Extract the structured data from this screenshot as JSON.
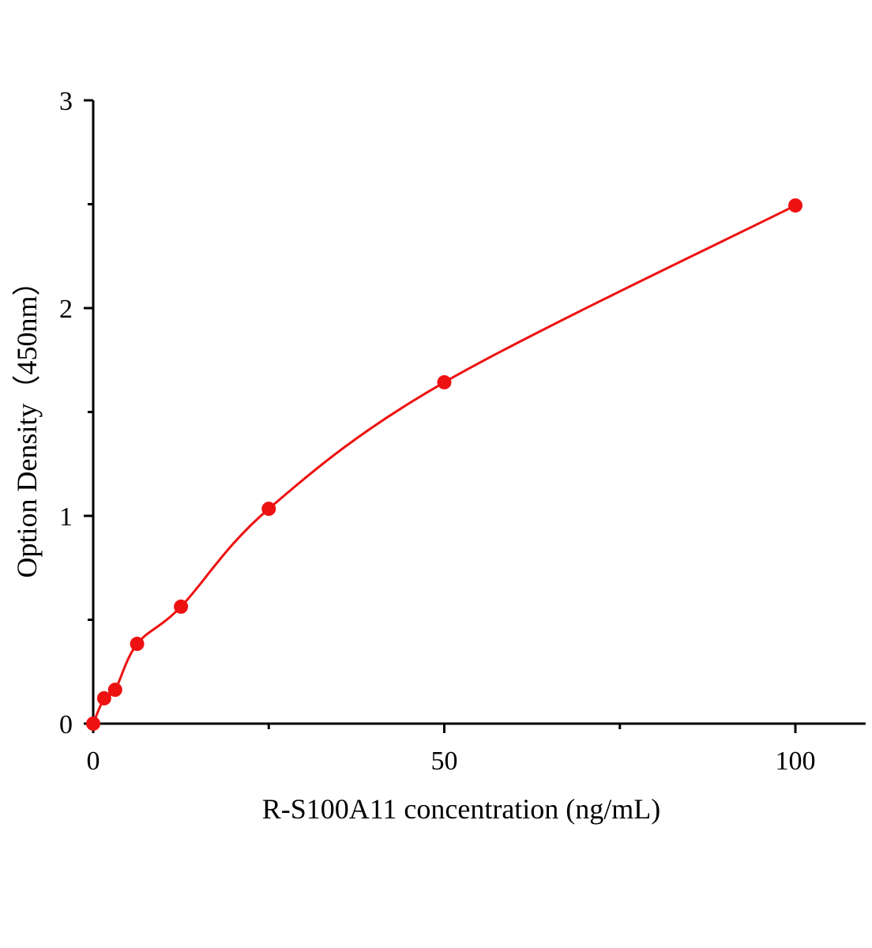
{
  "chart_data": {
    "type": "scatter",
    "title": "",
    "xlabel": "R-S100A11 concentration (ng/mL)",
    "ylabel": "Option Density（450nm）",
    "xlim": [
      0,
      110
    ],
    "ylim": [
      0,
      3
    ],
    "x_ticks": [
      "0",
      "50",
      "100"
    ],
    "x_tick_values": [
      0,
      50,
      100
    ],
    "x_minor_ticks": [
      25,
      75
    ],
    "y_ticks": [
      "0",
      "1",
      "2",
      "3"
    ],
    "y_tick_values": [
      0,
      1,
      2,
      3
    ],
    "y_minor_ticks": [
      0.5,
      1.5,
      2.5
    ],
    "grid": false,
    "legend": "none",
    "fit_curve": true,
    "color": "#ee1111",
    "series": [
      {
        "x": [
          0,
          1.56,
          3.125,
          6.25,
          12.5,
          25,
          50,
          100
        ],
        "y": [
          0,
          0.122,
          0.163,
          0.384,
          0.563,
          1.034,
          1.643,
          2.494
        ]
      }
    ]
  }
}
